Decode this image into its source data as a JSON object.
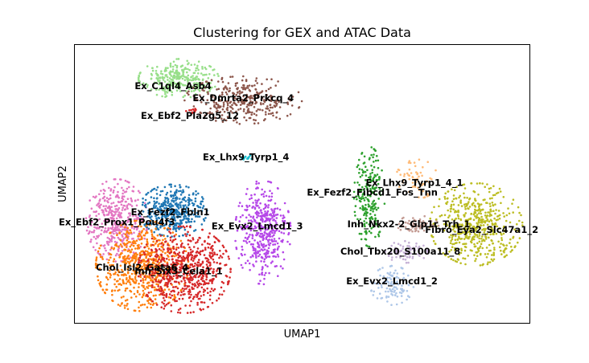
{
  "chart_data": {
    "type": "scatter",
    "title": "Clustering for GEX and ATAC Data",
    "xlabel": "UMAP1",
    "ylabel": "UMAP2",
    "xticks": "none",
    "yticks": "none",
    "grid": false,
    "legend": "on data",
    "clusters": [
      {
        "name": "Ex_C1ql4_Asb4",
        "color": "#98df8a",
        "x": 2.8,
        "y": 14.6,
        "n": 320,
        "sx": 0.65,
        "sy": 0.45,
        "lx": 2.6,
        "ly": 14.2
      },
      {
        "name": "Ex_Dmrta2_Prkcq_4",
        "color": "#8c564b",
        "x": 5.1,
        "y": 13.5,
        "n": 330,
        "sx": 0.95,
        "sy": 0.55,
        "lx": 5.1,
        "ly": 13.6
      },
      {
        "name": "Ex_Ebf2_Pla2g5_12",
        "color": "#d62728",
        "x": 3.3,
        "y": 12.9,
        "n": 10,
        "sx": 0.15,
        "sy": 0.1,
        "lx": 3.2,
        "ly": 12.7
      },
      {
        "name": "Ex_Lhx9_Tyrp1_4",
        "color": "#17becf",
        "x": 5.2,
        "y": 10.6,
        "n": 12,
        "sx": 0.1,
        "sy": 0.08,
        "lx": 5.2,
        "ly": 10.6
      },
      {
        "name": "Ex_Ebf2_Prox1_Pou4f3",
        "color": "#e377c2",
        "x": 0.6,
        "y": 7.4,
        "n": 420,
        "sx": 0.5,
        "sy": 0.95,
        "lx": 0.6,
        "ly": 7.3
      },
      {
        "name": "Ex_Fezf2_Fbln1",
        "color": "#1f77b4",
        "x": 2.6,
        "y": 7.9,
        "n": 420,
        "sx": 0.55,
        "sy": 0.6,
        "lx": 2.5,
        "ly": 7.8
      },
      {
        "name": "Ex_Evx2_Lmcd1_3",
        "color": "#b546e8",
        "x": 5.8,
        "y": 6.8,
        "n": 420,
        "sx": 0.45,
        "sy": 1.2,
        "lx": 5.6,
        "ly": 7.1
      },
      {
        "name": "Chol_Isl2_Gata6_4",
        "color": "#ff7f0e",
        "x": 1.5,
        "y": 5.1,
        "n": 650,
        "sx": 0.75,
        "sy": 1.05,
        "lx": 1.5,
        "ly": 5.0
      },
      {
        "name": "Inh_Six3_Cela1_1",
        "color": "#d62728",
        "x": 3.0,
        "y": 4.9,
        "n": 650,
        "sx": 0.75,
        "sy": 1.0,
        "lx": 2.8,
        "ly": 4.8
      },
      {
        "name": "Ex_Fezf2_Fibcd1_Fos_Tnn",
        "color": "#2ca02c",
        "x": 9.6,
        "y": 8.6,
        "n": 220,
        "sx": 0.25,
        "sy": 1.15,
        "lx": 9.7,
        "ly": 8.8
      },
      {
        "name": "Ex_Lhx9_Tyrp1_4_1",
        "color": "#ffbb78",
        "x": 11.3,
        "y": 9.5,
        "n": 60,
        "sx": 0.35,
        "sy": 0.45,
        "lx": 11.2,
        "ly": 9.3
      },
      {
        "name": "Inh_Nkx2-2_Glp1r_Trh_1",
        "color": "#c49c94",
        "x": 11.3,
        "y": 7.2,
        "n": 60,
        "sx": 0.35,
        "sy": 0.2,
        "lx": 11.0,
        "ly": 7.2
      },
      {
        "name": "Fibro_Eya2_Slc47a1_2",
        "color": "#bcbd22",
        "x": 13.4,
        "y": 7.2,
        "n": 520,
        "sx": 0.75,
        "sy": 0.95,
        "lx": 13.6,
        "ly": 6.9
      },
      {
        "name": "Chol_Tbx20_S100a11_8",
        "color": "#c5b0d5",
        "x": 10.9,
        "y": 5.8,
        "n": 70,
        "sx": 0.35,
        "sy": 0.25,
        "lx": 10.7,
        "ly": 5.8
      },
      {
        "name": "Ex_Evx2_Lmcd1_2",
        "color": "#aec7e8",
        "x": 10.4,
        "y": 4.1,
        "n": 110,
        "sx": 0.35,
        "sy": 0.45,
        "lx": 10.4,
        "ly": 4.3
      }
    ],
    "xlim": [
      -0.9,
      15.3
    ],
    "ylim": [
      2.2,
      16.3
    ]
  }
}
